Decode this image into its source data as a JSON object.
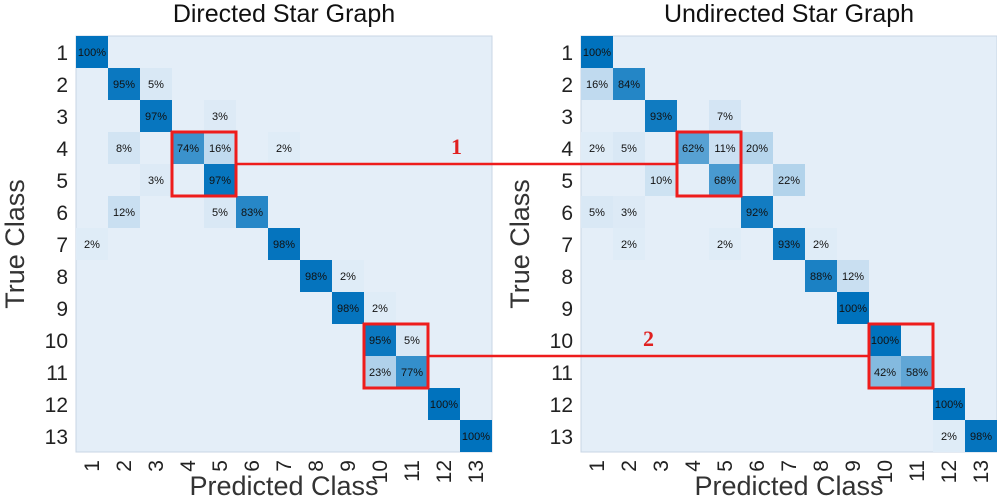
{
  "colors": {
    "background_cell": "#e4eef8",
    "highlight": "#ee1c1c",
    "annotation": "#e02020"
  },
  "chart_data": [
    {
      "type": "heatmap",
      "title": "Directed Star Graph",
      "xlabel": "Predicted Class",
      "ylabel": "True Class",
      "categories": [
        "1",
        "2",
        "3",
        "4",
        "5",
        "6",
        "7",
        "8",
        "9",
        "10",
        "11",
        "12",
        "13"
      ],
      "unit": "%",
      "cells": [
        {
          "row": 1,
          "col": 1,
          "value": 100
        },
        {
          "row": 2,
          "col": 2,
          "value": 95
        },
        {
          "row": 2,
          "col": 3,
          "value": 5
        },
        {
          "row": 3,
          "col": 3,
          "value": 97
        },
        {
          "row": 3,
          "col": 5,
          "value": 3
        },
        {
          "row": 4,
          "col": 2,
          "value": 8
        },
        {
          "row": 4,
          "col": 4,
          "value": 74
        },
        {
          "row": 4,
          "col": 5,
          "value": 16
        },
        {
          "row": 4,
          "col": 7,
          "value": 2
        },
        {
          "row": 5,
          "col": 3,
          "value": 3
        },
        {
          "row": 5,
          "col": 5,
          "value": 97
        },
        {
          "row": 6,
          "col": 2,
          "value": 12
        },
        {
          "row": 6,
          "col": 5,
          "value": 5
        },
        {
          "row": 6,
          "col": 6,
          "value": 83
        },
        {
          "row": 7,
          "col": 1,
          "value": 2
        },
        {
          "row": 7,
          "col": 7,
          "value": 98
        },
        {
          "row": 8,
          "col": 8,
          "value": 98
        },
        {
          "row": 8,
          "col": 9,
          "value": 2
        },
        {
          "row": 9,
          "col": 9,
          "value": 98
        },
        {
          "row": 9,
          "col": 10,
          "value": 2
        },
        {
          "row": 10,
          "col": 10,
          "value": 95
        },
        {
          "row": 10,
          "col": 11,
          "value": 5
        },
        {
          "row": 11,
          "col": 10,
          "value": 23
        },
        {
          "row": 11,
          "col": 11,
          "value": 77
        },
        {
          "row": 12,
          "col": 12,
          "value": 100
        },
        {
          "row": 13,
          "col": 13,
          "value": 100
        }
      ],
      "highlight_boxes": [
        {
          "rows": [
            4,
            5
          ],
          "cols": [
            4,
            5
          ],
          "label": "1"
        },
        {
          "rows": [
            10,
            11
          ],
          "cols": [
            10,
            11
          ],
          "label": "2"
        }
      ]
    },
    {
      "type": "heatmap",
      "title": "Undirected Star Graph",
      "xlabel": "Predicted Class",
      "ylabel": "True Class",
      "categories": [
        "1",
        "2",
        "3",
        "4",
        "5",
        "6",
        "7",
        "8",
        "9",
        "10",
        "11",
        "12",
        "13"
      ],
      "unit": "%",
      "cells": [
        {
          "row": 1,
          "col": 1,
          "value": 100
        },
        {
          "row": 2,
          "col": 1,
          "value": 16
        },
        {
          "row": 2,
          "col": 2,
          "value": 84
        },
        {
          "row": 3,
          "col": 3,
          "value": 93
        },
        {
          "row": 3,
          "col": 5,
          "value": 7
        },
        {
          "row": 4,
          "col": 1,
          "value": 2
        },
        {
          "row": 4,
          "col": 2,
          "value": 5
        },
        {
          "row": 4,
          "col": 4,
          "value": 62
        },
        {
          "row": 4,
          "col": 5,
          "value": 11
        },
        {
          "row": 4,
          "col": 6,
          "value": 20
        },
        {
          "row": 5,
          "col": 3,
          "value": 10
        },
        {
          "row": 5,
          "col": 5,
          "value": 68
        },
        {
          "row": 5,
          "col": 7,
          "value": 22
        },
        {
          "row": 6,
          "col": 1,
          "value": 5
        },
        {
          "row": 6,
          "col": 2,
          "value": 3
        },
        {
          "row": 6,
          "col": 6,
          "value": 92
        },
        {
          "row": 7,
          "col": 2,
          "value": 2
        },
        {
          "row": 7,
          "col": 5,
          "value": 2
        },
        {
          "row": 7,
          "col": 7,
          "value": 93
        },
        {
          "row": 7,
          "col": 8,
          "value": 2
        },
        {
          "row": 8,
          "col": 8,
          "value": 88
        },
        {
          "row": 8,
          "col": 9,
          "value": 12
        },
        {
          "row": 9,
          "col": 9,
          "value": 100
        },
        {
          "row": 10,
          "col": 10,
          "value": 100
        },
        {
          "row": 11,
          "col": 10,
          "value": 42
        },
        {
          "row": 11,
          "col": 11,
          "value": 58
        },
        {
          "row": 12,
          "col": 12,
          "value": 100
        },
        {
          "row": 13,
          "col": 12,
          "value": 2
        },
        {
          "row": 13,
          "col": 13,
          "value": 98
        }
      ],
      "highlight_boxes": [
        {
          "rows": [
            4,
            5
          ],
          "cols": [
            4,
            5
          ],
          "label": "1"
        },
        {
          "rows": [
            10,
            11
          ],
          "cols": [
            10,
            11
          ],
          "label": "2"
        }
      ]
    }
  ],
  "annotations": [
    "1",
    "2"
  ]
}
